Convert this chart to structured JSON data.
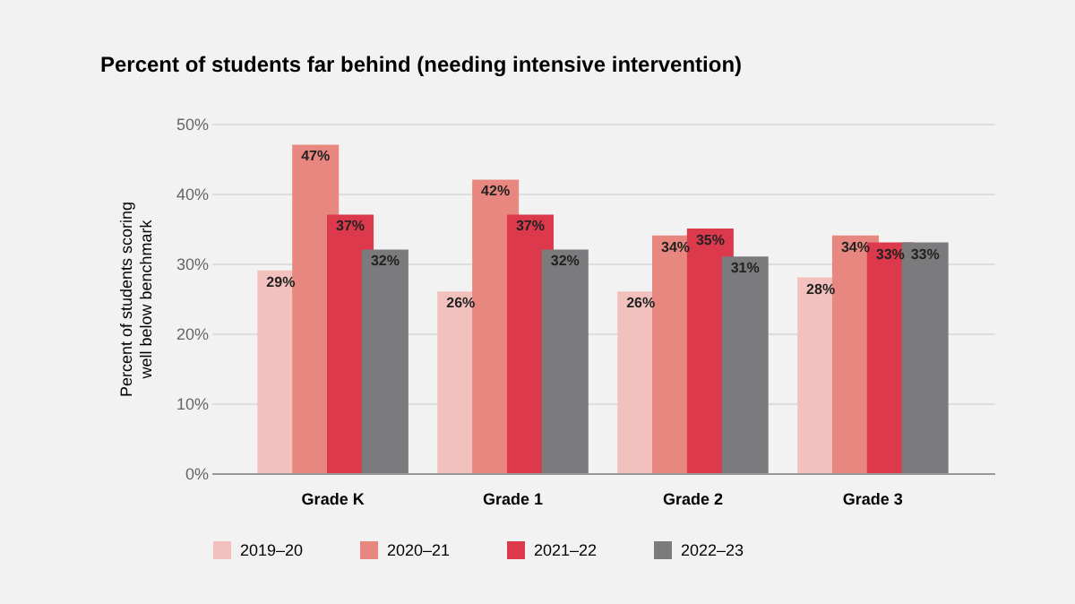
{
  "chart_data": {
    "type": "bar",
    "title": "Percent of students far behind (needing intensive intervention)",
    "ylabel": "Percent of students scoring well below benchmark",
    "categories": [
      "Grade K",
      "Grade 1",
      "Grade 2",
      "Grade 3"
    ],
    "series": [
      {
        "name": "2019–20",
        "color": "#f2c1bd",
        "values": [
          29,
          26,
          26,
          28
        ],
        "value_labels": [
          "29%",
          "26%",
          "26%",
          "28%"
        ]
      },
      {
        "name": "2020–21",
        "color": "#e8877f",
        "values": [
          47,
          42,
          34,
          34
        ],
        "value_labels": [
          "47%",
          "42%",
          "34%",
          "34%"
        ]
      },
      {
        "name": "2021–22",
        "color": "#dc3a4c",
        "values": [
          37,
          37,
          35,
          33
        ],
        "value_labels": [
          "37%",
          "37%",
          "35%",
          "33%"
        ]
      },
      {
        "name": "2022–23",
        "color": "#7b7b7d",
        "values": [
          32,
          32,
          31,
          33
        ],
        "value_labels": [
          "32%",
          "32%",
          "31%",
          "33%"
        ]
      }
    ],
    "ylim": [
      0,
      50
    ],
    "yticks": [
      {
        "value": 0,
        "label": "0%"
      },
      {
        "value": 10,
        "label": "10%"
      },
      {
        "value": 20,
        "label": "20%"
      },
      {
        "value": 30,
        "label": "30%"
      },
      {
        "value": 40,
        "label": "40%"
      },
      {
        "value": 50,
        "label": "50%"
      }
    ],
    "grid": "y",
    "legend": "bottom"
  }
}
